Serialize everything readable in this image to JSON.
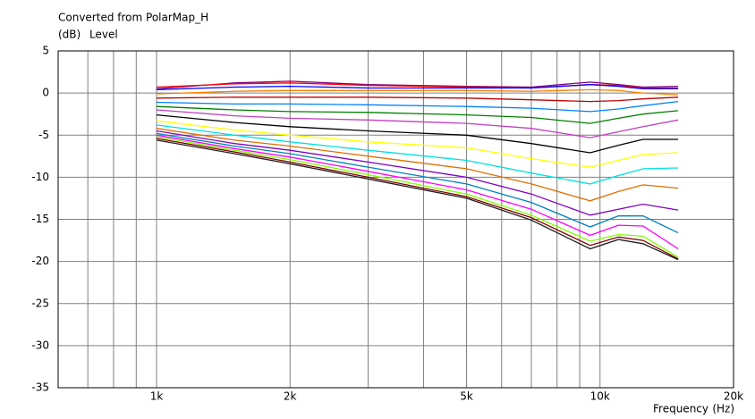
{
  "chart_data": {
    "type": "line",
    "title": "Converted from PolarMap_H",
    "y_unit": "(dB)",
    "y_label": "Level",
    "x_label": "Frequency",
    "x_unit": "(Hz)",
    "log_x": true,
    "grid": true,
    "xlim": [
      600,
      20000
    ],
    "ylim": [
      -35,
      5
    ],
    "xticks": [
      {
        "value": 1000,
        "label": "1k"
      },
      {
        "value": 2000,
        "label": "2k"
      },
      {
        "value": 5000,
        "label": "5k"
      },
      {
        "value": 10000,
        "label": "10k"
      },
      {
        "value": 20000,
        "label": "20k"
      }
    ],
    "x_minor_grid": [
      700,
      800,
      900,
      3000,
      4000,
      6000,
      7000,
      8000,
      9000
    ],
    "yticks": [
      5,
      0,
      -5,
      -10,
      -15,
      -20,
      -25,
      -30,
      -35
    ],
    "x": [
      1000,
      1500,
      2000,
      3000,
      5000,
      7000,
      9500,
      11000,
      12500,
      15000
    ],
    "series": [
      {
        "color": "#800080",
        "values": [
          0.5,
          1.2,
          1.4,
          1.0,
          0.8,
          0.7,
          1.3,
          1.0,
          0.7,
          0.8
        ]
      },
      {
        "color": "#ff0000",
        "values": [
          0.7,
          1.1,
          1.2,
          0.9,
          0.7,
          0.6,
          1.0,
          0.9,
          0.6,
          0.6
        ]
      },
      {
        "color": "#0000ff",
        "values": [
          0.4,
          0.7,
          0.8,
          0.6,
          0.6,
          0.6,
          1.0,
          0.8,
          0.5,
          0.5
        ]
      },
      {
        "color": "#ff8000",
        "values": [
          -0.1,
          0.2,
          0.3,
          0.3,
          0.3,
          0.2,
          0.4,
          0.3,
          0.0,
          -0.2
        ]
      },
      {
        "color": "#c00000",
        "values": [
          -0.6,
          -0.5,
          -0.5,
          -0.5,
          -0.6,
          -0.8,
          -1.0,
          -0.9,
          -0.7,
          -0.5
        ]
      },
      {
        "color": "#0080ff",
        "values": [
          -1.1,
          -1.3,
          -1.3,
          -1.4,
          -1.6,
          -1.8,
          -2.2,
          -1.9,
          -1.5,
          -1.0
        ]
      },
      {
        "color": "#008000",
        "values": [
          -1.6,
          -2.0,
          -2.2,
          -2.3,
          -2.6,
          -2.9,
          -3.6,
          -3.0,
          -2.5,
          -2.1
        ]
      },
      {
        "color": "#c040c0",
        "values": [
          -2.0,
          -2.7,
          -3.0,
          -3.2,
          -3.6,
          -4.2,
          -5.3,
          -4.6,
          -4.0,
          -3.2
        ]
      },
      {
        "color": "#000000",
        "values": [
          -2.6,
          -3.5,
          -4.0,
          -4.5,
          -5.0,
          -6.0,
          -7.1,
          -6.2,
          -5.5,
          -5.5
        ]
      },
      {
        "color": "#ffff00",
        "values": [
          -3.3,
          -4.4,
          -5.0,
          -5.8,
          -6.5,
          -7.8,
          -8.8,
          -8.0,
          -7.3,
          -7.1
        ]
      },
      {
        "color": "#00e0e0",
        "values": [
          -3.8,
          -5.0,
          -5.8,
          -6.8,
          -8.0,
          -9.5,
          -10.8,
          -9.8,
          -9.0,
          -8.9
        ]
      },
      {
        "color": "#e07000",
        "values": [
          -4.2,
          -5.6,
          -6.3,
          -7.5,
          -9.0,
          -10.8,
          -12.8,
          -11.7,
          -10.9,
          -11.3
        ]
      },
      {
        "color": "#8000c0",
        "values": [
          -4.5,
          -6.0,
          -6.8,
          -8.2,
          -10.0,
          -12.0,
          -14.5,
          -13.8,
          -13.2,
          -13.9
        ]
      },
      {
        "color": "#0080c0",
        "values": [
          -4.8,
          -6.3,
          -7.2,
          -8.8,
          -10.8,
          -13.0,
          -15.9,
          -14.6,
          -14.6,
          -16.6
        ]
      },
      {
        "color": "#ff00ff",
        "values": [
          -5.0,
          -6.6,
          -7.6,
          -9.3,
          -11.5,
          -13.8,
          -16.9,
          -15.7,
          -15.8,
          -18.5
        ]
      },
      {
        "color": "#80ff00",
        "values": [
          -5.2,
          -6.8,
          -7.9,
          -9.7,
          -12.0,
          -14.5,
          -17.6,
          -16.8,
          -17.0,
          -19.5
        ]
      },
      {
        "color": "#800000",
        "values": [
          -5.4,
          -7.0,
          -8.2,
          -10.0,
          -12.3,
          -14.8,
          -18.1,
          -17.1,
          -17.5,
          -19.7
        ]
      },
      {
        "color": "#202020",
        "values": [
          -5.6,
          -7.2,
          -8.4,
          -10.2,
          -12.5,
          -15.1,
          -18.5,
          -17.4,
          -17.9,
          -19.8
        ]
      }
    ]
  }
}
